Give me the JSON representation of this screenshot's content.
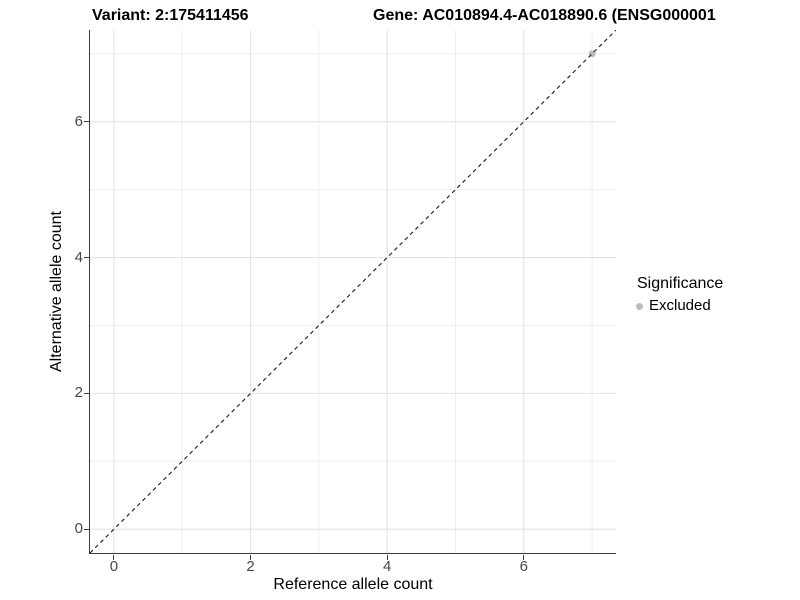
{
  "titles": {
    "variant": "Variant: 2:175411456",
    "gene": "Gene: AC010894.4-AC018890.6 (ENSG000001"
  },
  "chart_data": {
    "type": "scatter",
    "title": "Variant: 2:175411456 / Gene: AC010894.4-AC018890.6 (ENSG000001",
    "xlabel": "Reference allele count",
    "ylabel": "Alternative allele count",
    "xlim": [
      -0.35,
      7.35
    ],
    "ylim": [
      -0.35,
      7.35
    ],
    "x_major_ticks": [
      0,
      2,
      4,
      6
    ],
    "y_major_ticks": [
      0,
      2,
      4,
      6
    ],
    "x_minor_gridlines": [
      1,
      3,
      5,
      7
    ],
    "y_minor_gridlines": [
      1,
      3,
      5,
      7
    ],
    "grid": true,
    "identity_line": {
      "style": "dashed",
      "from": [
        -0.35,
        -0.35
      ],
      "to": [
        7.35,
        7.35
      ]
    },
    "series": [
      {
        "name": "Excluded",
        "color": "#bdbdbd",
        "points": [
          [
            7,
            7
          ]
        ]
      }
    ],
    "legend": {
      "position": "right",
      "title": "Significance",
      "entries": [
        {
          "label": "Excluded",
          "color": "#bdbdbd"
        }
      ]
    }
  },
  "colors": {
    "background": "#ffffff",
    "axis_line": "#3c3c3c",
    "tick_mark": "#3c3c3c",
    "tick_label": "#474747",
    "grid_major": "#e3e3e3",
    "grid_minor": "#efefef",
    "dashed_line": "#1a1a1a",
    "point": "#bdbdbd",
    "text": "#000000"
  }
}
